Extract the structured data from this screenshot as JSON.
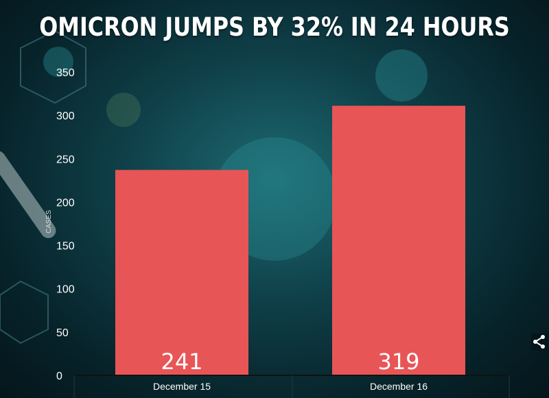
{
  "title": "OMICRON JUMPS BY 32% IN 24 HOURS",
  "chart_data": {
    "type": "bar",
    "categories": [
      "December 15",
      "December 16"
    ],
    "values": [
      241,
      319
    ],
    "data_labels": [
      "241",
      "319"
    ],
    "ylabel": "CASES",
    "xlabel": "",
    "ylim": [
      0,
      350
    ],
    "yticks": [
      "0",
      "50",
      "100",
      "150",
      "200",
      "250",
      "300",
      "350"
    ],
    "bar_color": "#e85556",
    "grid": false
  },
  "share_icon": "share-icon"
}
